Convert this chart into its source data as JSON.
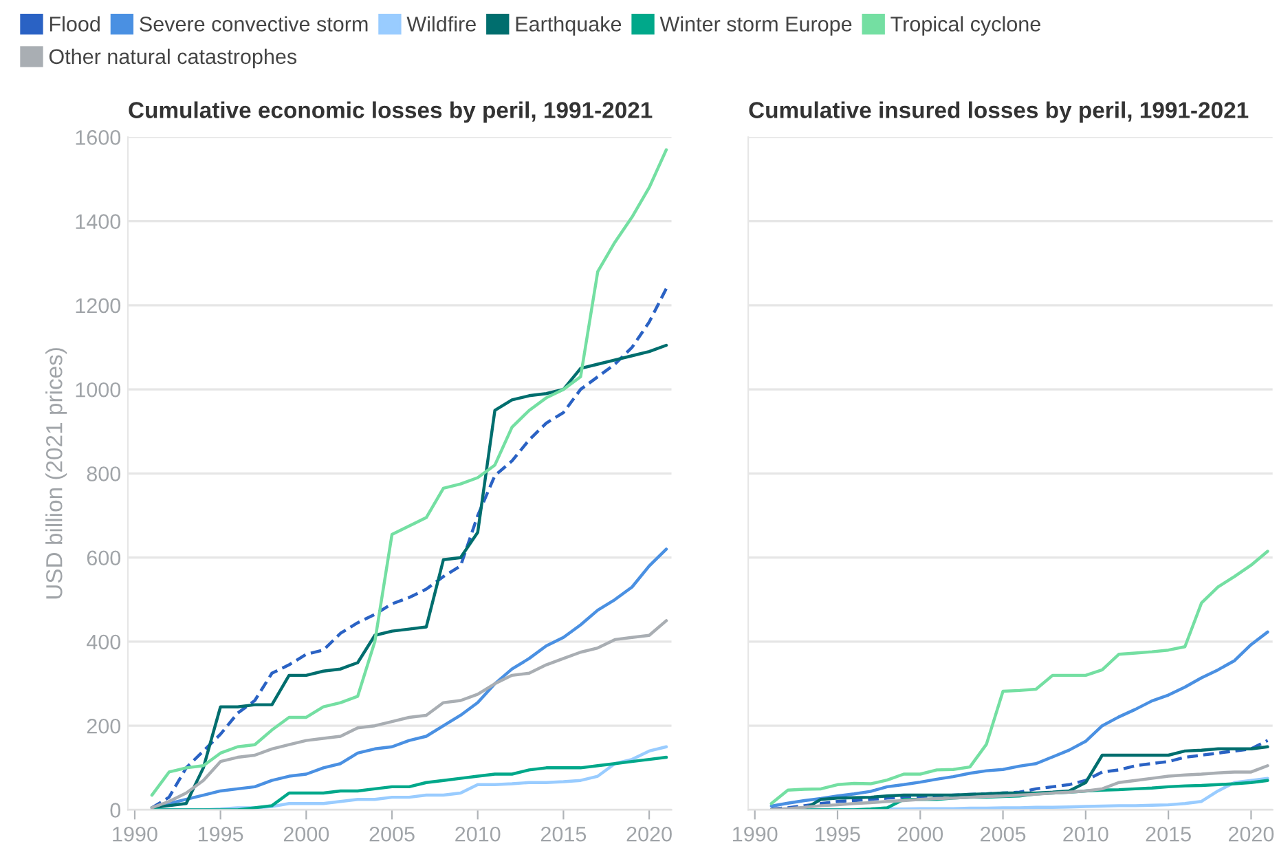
{
  "chart_data": [
    {
      "type": "line",
      "title": "Cumulative economic losses by peril, 1991-2021",
      "ylabel": "USD billion (2021 prices)",
      "xlim": [
        1989.6,
        2021.3
      ],
      "ylim": [
        0,
        1600
      ],
      "xticks": [
        1990,
        1995,
        2000,
        2005,
        2010,
        2015,
        2020
      ],
      "yticks": [
        0,
        200,
        400,
        600,
        800,
        1000,
        1200,
        1400,
        1600
      ],
      "grid": "y",
      "legend": "top",
      "x": [
        1991,
        1992,
        1993,
        1994,
        1995,
        1996,
        1997,
        1998,
        1999,
        2000,
        2001,
        2002,
        2003,
        2004,
        2005,
        2006,
        2007,
        2008,
        2009,
        2010,
        2011,
        2012,
        2013,
        2014,
        2015,
        2016,
        2017,
        2018,
        2019,
        2020,
        2021
      ],
      "series": [
        {
          "name": "Flood",
          "color": "#2a62c4",
          "line_style": "dashed",
          "values": [
            5,
            30,
            100,
            140,
            180,
            230,
            260,
            325,
            345,
            370,
            380,
            420,
            445,
            465,
            490,
            505,
            525,
            555,
            580,
            700,
            795,
            830,
            880,
            920,
            945,
            1000,
            1030,
            1060,
            1100,
            1160,
            1240
          ]
        },
        {
          "name": "Severe convective storm",
          "color": "#4a90e2",
          "values": [
            5,
            15,
            25,
            35,
            45,
            50,
            55,
            70,
            80,
            85,
            100,
            110,
            135,
            145,
            150,
            165,
            175,
            200,
            225,
            255,
            300,
            335,
            360,
            390,
            410,
            440,
            475,
            500,
            530,
            580,
            620
          ]
        },
        {
          "name": "Wildfire",
          "color": "#99ccff",
          "values": [
            0,
            0,
            0,
            0,
            2,
            5,
            5,
            8,
            15,
            15,
            15,
            20,
            25,
            25,
            30,
            30,
            35,
            35,
            40,
            60,
            60,
            62,
            65,
            65,
            67,
            70,
            80,
            110,
            120,
            140,
            150
          ]
        },
        {
          "name": "Earthquake",
          "color": "#006e6e",
          "values": [
            5,
            10,
            15,
            100,
            245,
            245,
            250,
            250,
            320,
            320,
            330,
            335,
            350,
            415,
            425,
            430,
            435,
            595,
            600,
            660,
            950,
            975,
            985,
            990,
            1000,
            1050,
            1060,
            1070,
            1080,
            1090,
            1105
          ]
        },
        {
          "name": "Winter storm Europe",
          "color": "#00a88a",
          "values": [
            0,
            0,
            0,
            0,
            0,
            0,
            5,
            10,
            40,
            40,
            40,
            45,
            45,
            50,
            55,
            55,
            65,
            70,
            75,
            80,
            85,
            85,
            95,
            100,
            100,
            100,
            105,
            110,
            115,
            120,
            125
          ]
        },
        {
          "name": "Tropical cyclone",
          "color": "#74dfa2",
          "values": [
            35,
            90,
            100,
            105,
            135,
            150,
            155,
            190,
            220,
            220,
            245,
            255,
            270,
            400,
            655,
            675,
            695,
            765,
            775,
            790,
            820,
            910,
            950,
            980,
            1000,
            1030,
            1280,
            1350,
            1410,
            1480,
            1570
          ]
        },
        {
          "name": "Other natural catastrophes",
          "color": "#a9aeb3",
          "values": [
            5,
            20,
            40,
            70,
            115,
            125,
            130,
            145,
            155,
            165,
            170,
            175,
            195,
            200,
            210,
            220,
            225,
            255,
            260,
            275,
            300,
            320,
            325,
            345,
            360,
            375,
            385,
            405,
            410,
            415,
            450
          ]
        }
      ]
    },
    {
      "type": "line",
      "title": "Cumulative insured losses by peril, 1991-2021",
      "xlim": [
        1989.6,
        2021.3
      ],
      "ylim": [
        0,
        1600
      ],
      "xticks": [
        1990,
        1995,
        2000,
        2005,
        2010,
        2015,
        2020
      ],
      "yticks": [
        0,
        200,
        400,
        600,
        800,
        1000,
        1200,
        1400,
        1600
      ],
      "tick_labels": "x",
      "grid": "y",
      "legend": "top",
      "x": [
        1991,
        1992,
        1993,
        1994,
        1995,
        1996,
        1997,
        1998,
        1999,
        2000,
        2001,
        2002,
        2003,
        2004,
        2005,
        2006,
        2007,
        2008,
        2009,
        2010,
        2011,
        2012,
        2013,
        2014,
        2015,
        2016,
        2017,
        2018,
        2019,
        2020,
        2021
      ],
      "series": [
        {
          "name": "Flood",
          "color": "#2a62c4",
          "line_style": "dashed",
          "values": [
            2,
            5,
            10,
            15,
            20,
            22,
            25,
            28,
            30,
            32,
            33,
            35,
            37,
            38,
            40,
            42,
            50,
            55,
            60,
            70,
            90,
            95,
            105,
            110,
            115,
            125,
            130,
            135,
            140,
            145,
            165
          ]
        },
        {
          "name": "Severe convective storm",
          "color": "#4a90e2",
          "values": [
            9,
            16,
            22,
            27,
            33,
            38,
            44,
            55,
            60,
            66,
            73,
            79,
            87,
            93,
            96,
            104,
            110,
            126,
            142,
            163,
            200,
            221,
            239,
            259,
            273,
            292,
            314,
            333,
            355,
            393,
            423
          ]
        },
        {
          "name": "Wildfire",
          "color": "#99ccff",
          "values": [
            0,
            0,
            0,
            0,
            0,
            1,
            1,
            2,
            2,
            3,
            3,
            3,
            4,
            4,
            5,
            5,
            6,
            6,
            7,
            8,
            9,
            10,
            10,
            11,
            12,
            15,
            20,
            45,
            65,
            70,
            75
          ]
        },
        {
          "name": "Earthquake",
          "color": "#006e6e",
          "values": [
            0,
            0,
            2,
            25,
            28,
            29,
            30,
            33,
            35,
            35,
            35,
            35,
            37,
            38,
            40,
            40,
            40,
            42,
            45,
            65,
            130,
            130,
            130,
            130,
            130,
            140,
            142,
            145,
            145,
            145,
            150
          ]
        },
        {
          "name": "Winter storm Europe",
          "color": "#00a88a",
          "values": [
            0,
            0,
            0,
            0,
            0,
            0,
            2,
            5,
            25,
            25,
            25,
            28,
            30,
            30,
            32,
            33,
            38,
            40,
            42,
            45,
            47,
            48,
            50,
            52,
            55,
            57,
            58,
            60,
            62,
            65,
            70
          ]
        },
        {
          "name": "Tropical cyclone",
          "color": "#74dfa2",
          "values": [
            15,
            47,
            49,
            50,
            60,
            63,
            62,
            71,
            85,
            85,
            95,
            96,
            102,
            156,
            282,
            284,
            287,
            320,
            320,
            320,
            333,
            370,
            373,
            376,
            380,
            388,
            492,
            530,
            555,
            582,
            615
          ]
        },
        {
          "name": "Other natural catastrophes",
          "color": "#a9aeb3",
          "values": [
            1,
            3,
            6,
            10,
            12,
            15,
            17,
            20,
            22,
            25,
            27,
            28,
            30,
            32,
            33,
            35,
            37,
            40,
            42,
            45,
            50,
            65,
            70,
            75,
            80,
            83,
            85,
            88,
            90,
            90,
            105
          ]
        }
      ]
    }
  ]
}
